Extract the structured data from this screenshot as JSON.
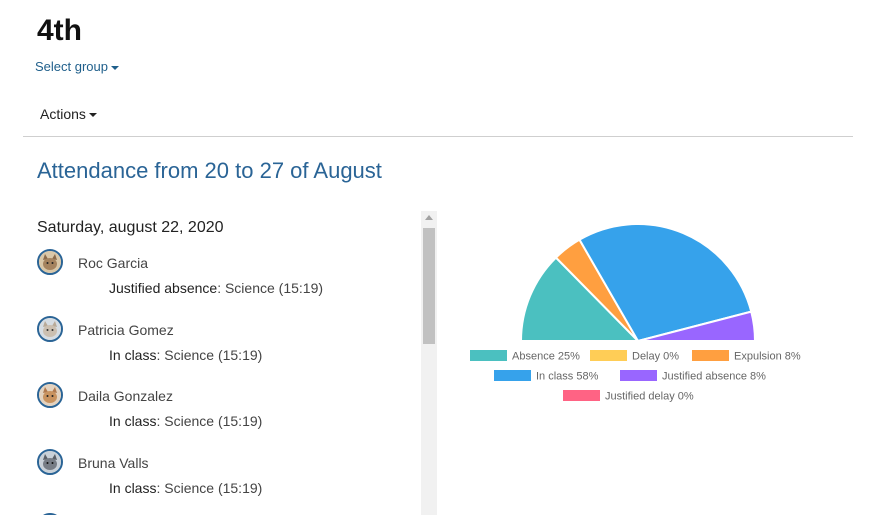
{
  "header": {
    "title": "4th",
    "select_group_label": "Select group",
    "actions_label": "Actions"
  },
  "section": {
    "title": "Attendance from 20 to 27 of August"
  },
  "day": {
    "heading": "Saturday, august 22, 2020",
    "entries": [
      {
        "name": "Roc Garcia",
        "status": "Justified absence",
        "separator": ":",
        "detail": " Science (15:19)",
        "avatar_icon": "cat-avatar-icon"
      },
      {
        "name": "Patricia Gomez",
        "status": "In class",
        "separator": ":",
        "detail": " Science (15:19)",
        "avatar_icon": "cat-avatar-icon"
      },
      {
        "name": "Daila Gonzalez",
        "status": "In class",
        "separator": ":",
        "detail": " Science (15:19)",
        "avatar_icon": "cat-avatar-icon"
      },
      {
        "name": "Bruna Valls",
        "status": "In class",
        "separator": ":",
        "detail": " Science (15:19)",
        "avatar_icon": "cat-avatar-icon"
      }
    ]
  },
  "chart_data": {
    "type": "pie",
    "title": "",
    "rotation_degrees": 270,
    "circumference_degrees": 180,
    "legend_position": "bottom",
    "series": [
      {
        "name": "Absence",
        "value": 25,
        "label": "Absence 25%",
        "color": "#4bc0c0"
      },
      {
        "name": "Delay",
        "value": 0,
        "label": "Delay 0%",
        "color": "#ffcd56"
      },
      {
        "name": "Expulsion",
        "value": 8,
        "label": "Expulsion 8%",
        "color": "#ff9f40"
      },
      {
        "name": "In class",
        "value": 58,
        "label": "In class 58%",
        "color": "#36a2eb"
      },
      {
        "name": "Justified absence",
        "value": 8,
        "label": "Justified absence 8%",
        "color": "#9966ff"
      },
      {
        "name": "Justified delay",
        "value": 0,
        "label": "Justified delay 0%",
        "color": "#ff6384"
      }
    ]
  }
}
